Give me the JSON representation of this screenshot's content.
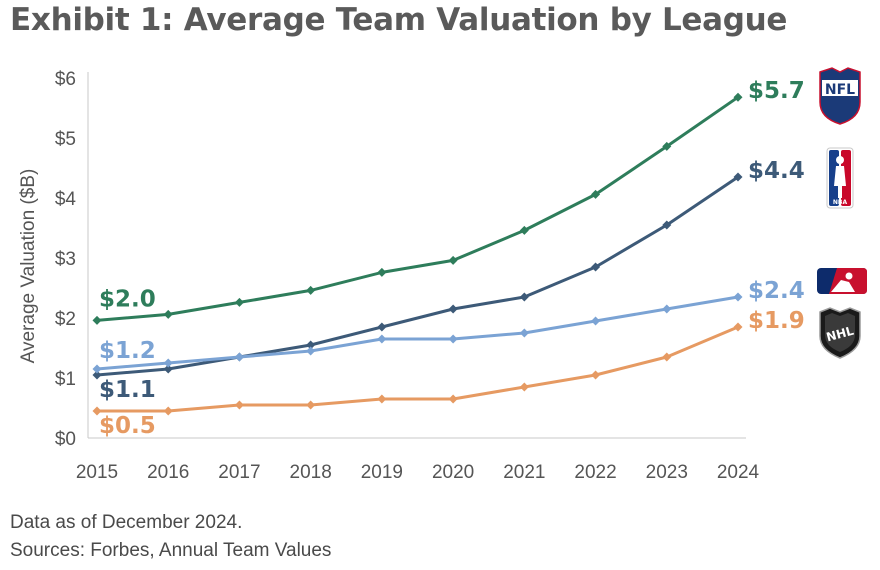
{
  "title": "Exhibit 1: Average Team Valuation by League",
  "footer": {
    "note": "Data as of December 2024.",
    "sources": "Sources: Forbes, Annual Team Values"
  },
  "logos": [
    {
      "name": "nfl-logo-icon",
      "text": "NFL"
    },
    {
      "name": "nba-logo-icon",
      "text": "NBA"
    },
    {
      "name": "mlb-logo-icon",
      "text": ""
    },
    {
      "name": "nhl-logo-icon",
      "text": "NHL"
    }
  ],
  "chart_data": {
    "type": "line",
    "title": "Exhibit 1: Average Team Valuation by League",
    "xlabel": "",
    "ylabel": "Average Valuation ($B)",
    "x": [
      2015,
      2016,
      2017,
      2018,
      2019,
      2020,
      2021,
      2022,
      2023,
      2024
    ],
    "ylim": [
      0,
      6
    ],
    "yticks": [
      0,
      1,
      2,
      3,
      4,
      5,
      6
    ],
    "ytick_labels": [
      "$0",
      "$1",
      "$2",
      "$3",
      "$4",
      "$5",
      "$6"
    ],
    "grid": false,
    "legend": "none",
    "series": [
      {
        "name": "NFL",
        "color": "#2e7d5b",
        "values": [
          1.96,
          2.06,
          2.26,
          2.46,
          2.76,
          2.96,
          3.46,
          4.06,
          4.86,
          5.68
        ],
        "start_label": "$2.0",
        "end_label": "$5.7"
      },
      {
        "name": "NBA",
        "color": "#3d5a78",
        "values": [
          1.05,
          1.15,
          1.35,
          1.55,
          1.85,
          2.15,
          2.35,
          2.85,
          3.55,
          4.35
        ],
        "start_label": "$1.1",
        "end_label": "$4.4"
      },
      {
        "name": "MLB",
        "color": "#7ba3d4",
        "values": [
          1.15,
          1.25,
          1.35,
          1.45,
          1.65,
          1.65,
          1.75,
          1.95,
          2.15,
          2.35
        ],
        "start_label": "$1.2",
        "end_label": "$2.4"
      },
      {
        "name": "NHL",
        "color": "#e69a62",
        "values": [
          0.45,
          0.45,
          0.55,
          0.55,
          0.65,
          0.65,
          0.85,
          1.05,
          1.35,
          1.85
        ],
        "start_label": "$0.5",
        "end_label": "$1.9"
      }
    ]
  }
}
